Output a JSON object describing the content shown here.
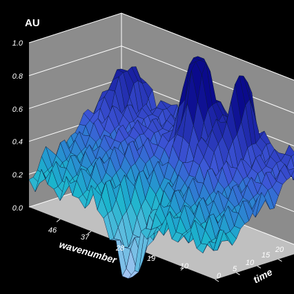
{
  "chart_data": {
    "type": "surface3d",
    "zlabel": "AU",
    "xlabel": "wavenumber",
    "ylabel": "time",
    "zlim": [
      0.0,
      1.0
    ],
    "z_ticks": [
      "0.0",
      "0.2",
      "0.4",
      "0.6",
      "0.8",
      "1.0"
    ],
    "x_ticks": [
      "46",
      "37",
      "28",
      "19",
      "10"
    ],
    "y_ticks": [
      "0",
      "5",
      "10",
      "15",
      "20"
    ],
    "x_range": [
      55,
      1
    ],
    "y_range": [
      0,
      22
    ],
    "grid": true,
    "peaks": [
      {
        "wavenumber": 27,
        "time": 17,
        "value": 0.98
      },
      {
        "wavenumber": 17,
        "time": 20,
        "value": 0.72
      },
      {
        "wavenumber": 50,
        "time": 18,
        "value": 0.5
      },
      {
        "wavenumber": 19,
        "time": 16,
        "value": 0.6
      }
    ],
    "trough": {
      "wavenumber": 27,
      "time": 0,
      "value": -0.2
    },
    "colors": {
      "background": "#000000",
      "wall": "#8c8c8c",
      "floor": "#c0c0c0",
      "grid": "#ffffff",
      "surface_low": "#a4c4f2",
      "surface_mid": "#1ab4cc",
      "surface_high": "#3d55d6",
      "surface_top": "#0a0a8c"
    }
  }
}
